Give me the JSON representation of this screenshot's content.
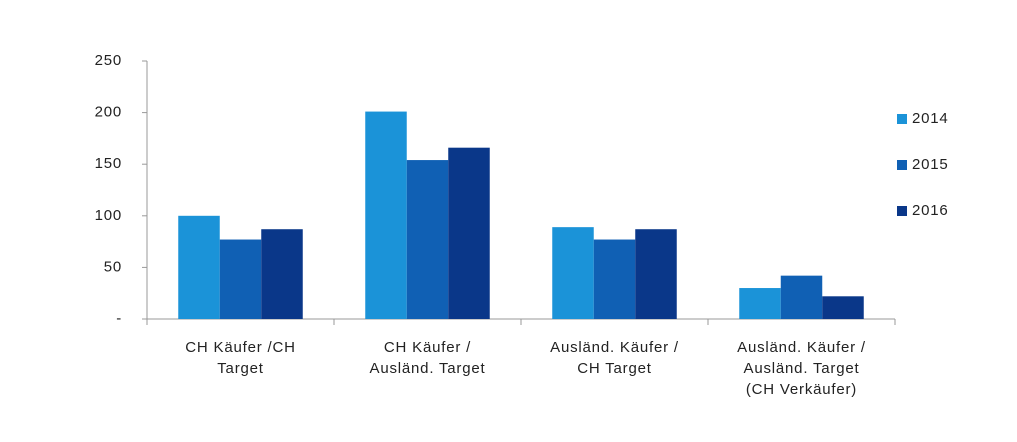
{
  "chart_data": {
    "type": "bar",
    "categories": [
      [
        "CH Käufer /CH",
        "Target"
      ],
      [
        "CH Käufer /",
        "Ausländ. Target"
      ],
      [
        "Ausländ. Käufer /",
        "CH Target"
      ],
      [
        "Ausländ. Käufer /",
        "Ausländ. Target",
        "(CH Verkäufer)"
      ]
    ],
    "series": [
      {
        "name": "2014",
        "color": "#1b93d8",
        "values": [
          100,
          201,
          89,
          30
        ]
      },
      {
        "name": "2015",
        "color": "#1060b4",
        "values": [
          77,
          154,
          77,
          42
        ]
      },
      {
        "name": "2016",
        "color": "#0a3789",
        "values": [
          87,
          166,
          87,
          22
        ]
      }
    ],
    "ylim": [
      0,
      250
    ],
    "yticks": [
      {
        "value": 0,
        "label": "-"
      },
      50,
      100,
      150,
      200,
      250
    ],
    "legend": "right"
  }
}
